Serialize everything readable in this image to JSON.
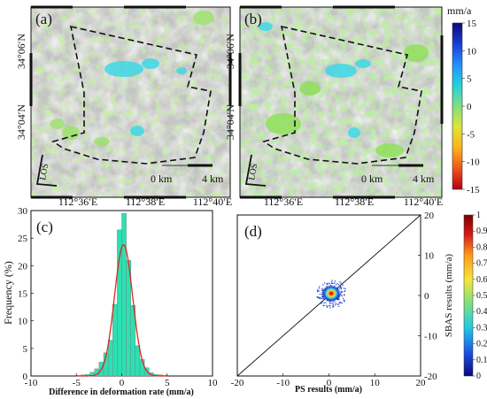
{
  "deformation_unit": "mm/a",
  "deformation_scale_ticks": [
    "15",
    "10",
    "5",
    "0",
    "-5",
    "-10",
    "-15"
  ],
  "deformation_colorbar_colors": [
    "#0a0a7a",
    "#1a3dd6",
    "#1e90ff",
    "#22d3d8",
    "#7fe07f",
    "#d8e63a",
    "#ffb21a",
    "#f0541a",
    "#b3000f"
  ],
  "panel_a": {
    "label": "(a)"
  },
  "panel_b": {
    "label": "(b)"
  },
  "map_lat_labels": [
    "34°06′N",
    "34°04′N"
  ],
  "map_lon_labels": [
    "112°36′E",
    "112°38′E",
    "112°40′E"
  ],
  "scale_bar": {
    "left": "0 km",
    "right": "4 km"
  },
  "los_label": "LOS",
  "chart_data": [
    {
      "type": "bar",
      "panel": "(c)",
      "xlabel": "Difference in deformation rate (mm/a)",
      "ylabel": "Frequency (%)",
      "xlim": [
        -10,
        10
      ],
      "ylim": [
        0,
        30
      ],
      "xticks": [
        "-10",
        "-5",
        "0",
        "5",
        "10"
      ],
      "yticks": [
        "0",
        "5",
        "10",
        "15",
        "20",
        "25",
        "30"
      ],
      "bins": [
        -5,
        -4.5,
        -4,
        -3.5,
        -3,
        -2.5,
        -2,
        -1.5,
        -1,
        -0.5,
        0,
        0.5,
        1,
        1.5,
        2,
        2.5,
        3,
        3.5,
        4,
        4.5
      ],
      "values": [
        0.1,
        0.2,
        0.3,
        0.7,
        1.3,
        2.5,
        4.2,
        6.5,
        13,
        26.5,
        29.5,
        21,
        12.8,
        5.5,
        3,
        1.5,
        0.6,
        0.3,
        0.2,
        0.1
      ],
      "bin_width": 0.5,
      "bar_color": "#2de0b2",
      "fit_curve": {
        "type": "normal",
        "mean": 0.2,
        "sigma": 1.0,
        "peak": 23.8,
        "color": "#e0271c"
      }
    },
    {
      "type": "scatter",
      "panel": "(d)",
      "xlabel": "PS results (mm/a)",
      "ylabel": "SBAS results (mm/a)",
      "xlim": [
        -20,
        20
      ],
      "ylim": [
        -20,
        20
      ],
      "xticks": [
        "-20",
        "-10",
        "0",
        "10",
        "20"
      ],
      "yticks": [
        "-20",
        "-10",
        "0",
        "10",
        "20"
      ],
      "reference_line": "y = x",
      "cluster_center": [
        0.5,
        0.5
      ],
      "density_colorbar": {
        "ticks": [
          "0",
          "0.1",
          "0.2",
          "0.3",
          "0.4",
          "0.5",
          "0.6",
          "0.7",
          "0.8",
          "0.9",
          "1"
        ],
        "colors": [
          "#08087a",
          "#1d4fe0",
          "#22c8e6",
          "#7fe07f",
          "#f5e63a",
          "#ff9a1a",
          "#d31a1a",
          "#7a0000"
        ]
      }
    }
  ]
}
